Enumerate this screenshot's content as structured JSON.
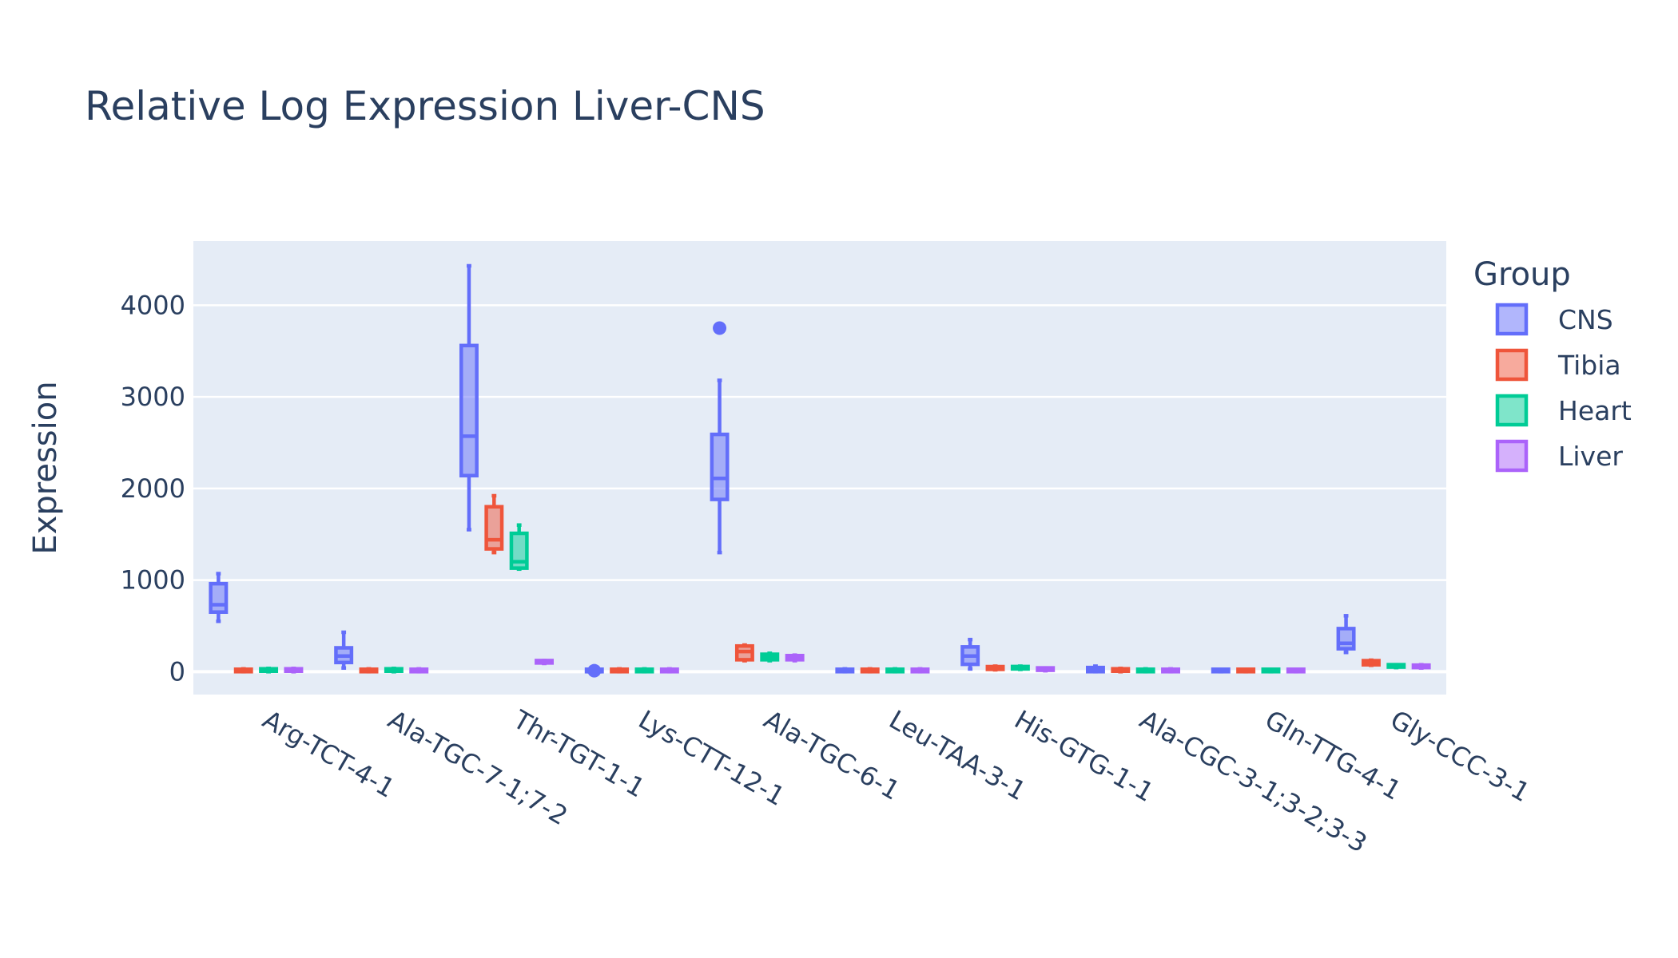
{
  "chart_data": {
    "type": "box",
    "title": "Relative Log Expression Liver-CNS",
    "xlabel": "",
    "ylabel": "Expression",
    "ylim": [
      -250,
      4700
    ],
    "yticks": [
      0,
      1000,
      2000,
      3000,
      4000
    ],
    "grid": true,
    "legend": {
      "title": "Group",
      "placement": "right"
    },
    "categories": [
      "Arg-TCT-4-1",
      "Ala-TGC-7-1;7-2",
      "Thr-TGT-1-1",
      "Lys-CTT-12-1",
      "Ala-TGC-6-1",
      "Leu-TAA-3-1",
      "His-GTG-1-1",
      "Ala-CGC-3-1;3-2;3-3",
      "Gln-TTG-4-1",
      "Gly-CCC-3-1"
    ],
    "series": [
      {
        "name": "CNS",
        "color": "#636efa",
        "boxes": [
          {
            "min": 550,
            "q1": 650,
            "median": 730,
            "q3": 960,
            "max": 1070
          },
          {
            "min": 40,
            "q1": 100,
            "median": 170,
            "q3": 260,
            "max": 430
          },
          {
            "min": 1550,
            "q1": 2140,
            "median": 2570,
            "q3": 3560,
            "max": 4430
          },
          {
            "min": 0,
            "q1": 0,
            "median": 0,
            "q3": 0,
            "max": 0,
            "outliers": [
              10
            ]
          },
          {
            "min": 1300,
            "q1": 1880,
            "median": 2110,
            "q3": 2590,
            "max": 3180,
            "outliers": [
              3750
            ]
          },
          {
            "min": 0,
            "q1": 0,
            "median": 10,
            "q3": 25,
            "max": 30
          },
          {
            "min": 30,
            "q1": 80,
            "median": 170,
            "q3": 270,
            "max": 350
          },
          {
            "min": 0,
            "q1": 0,
            "median": 20,
            "q3": 45,
            "max": 60
          },
          {
            "min": 0,
            "q1": 0,
            "median": 5,
            "q3": 15,
            "max": 20
          },
          {
            "min": 210,
            "q1": 250,
            "median": 310,
            "q3": 470,
            "max": 610
          }
        ]
      },
      {
        "name": "Tibia",
        "color": "#ef553b",
        "boxes": [
          {
            "min": 0,
            "q1": 0,
            "median": 10,
            "q3": 25,
            "max": 30
          },
          {
            "min": 0,
            "q1": 0,
            "median": 10,
            "q3": 25,
            "max": 30
          },
          {
            "min": 1300,
            "q1": 1340,
            "median": 1440,
            "q3": 1800,
            "max": 1920
          },
          {
            "min": 0,
            "q1": 0,
            "median": 10,
            "q3": 25,
            "max": 30
          },
          {
            "min": 120,
            "q1": 130,
            "median": 220,
            "q3": 280,
            "max": 290
          },
          {
            "min": 0,
            "q1": 0,
            "median": 10,
            "q3": 25,
            "max": 30
          },
          {
            "min": 20,
            "q1": 25,
            "median": 40,
            "q3": 55,
            "max": 60
          },
          {
            "min": 0,
            "q1": 5,
            "median": 15,
            "q3": 30,
            "max": 35
          },
          {
            "min": 0,
            "q1": 0,
            "median": 5,
            "q3": 15,
            "max": 20
          },
          {
            "min": 70,
            "q1": 75,
            "median": 100,
            "q3": 120,
            "max": 125
          }
        ]
      },
      {
        "name": "Heart",
        "color": "#00cc96",
        "boxes": [
          {
            "min": 0,
            "q1": 5,
            "median": 15,
            "q3": 30,
            "max": 35
          },
          {
            "min": 0,
            "q1": 5,
            "median": 15,
            "q3": 30,
            "max": 35
          },
          {
            "min": 1120,
            "q1": 1130,
            "median": 1200,
            "q3": 1510,
            "max": 1600
          },
          {
            "min": 0,
            "q1": 0,
            "median": 10,
            "q3": 25,
            "max": 30
          },
          {
            "min": 120,
            "q1": 130,
            "median": 160,
            "q3": 190,
            "max": 200
          },
          {
            "min": 0,
            "q1": 0,
            "median": 10,
            "q3": 25,
            "max": 30
          },
          {
            "min": 25,
            "q1": 30,
            "median": 40,
            "q3": 55,
            "max": 60
          },
          {
            "min": 0,
            "q1": 0,
            "median": 10,
            "q3": 25,
            "max": 30
          },
          {
            "min": 0,
            "q1": 0,
            "median": 5,
            "q3": 15,
            "max": 20
          },
          {
            "min": 45,
            "q1": 50,
            "median": 60,
            "q3": 70,
            "max": 75
          }
        ]
      },
      {
        "name": "Liver",
        "color": "#ab63fa",
        "boxes": [
          {
            "min": 0,
            "q1": 5,
            "median": 15,
            "q3": 30,
            "max": 35
          },
          {
            "min": 0,
            "q1": 0,
            "median": 10,
            "q3": 25,
            "max": 30
          },
          {
            "min": 90,
            "q1": 95,
            "median": 105,
            "q3": 115,
            "max": 120
          },
          {
            "min": 0,
            "q1": 0,
            "median": 10,
            "q3": 25,
            "max": 30
          },
          {
            "min": 120,
            "q1": 130,
            "median": 150,
            "q3": 175,
            "max": 180
          },
          {
            "min": 0,
            "q1": 0,
            "median": 10,
            "q3": 25,
            "max": 30
          },
          {
            "min": 10,
            "q1": 15,
            "median": 25,
            "q3": 35,
            "max": 40
          },
          {
            "min": 0,
            "q1": 0,
            "median": 10,
            "q3": 25,
            "max": 30
          },
          {
            "min": 0,
            "q1": 0,
            "median": 5,
            "q3": 15,
            "max": 20
          },
          {
            "min": 40,
            "q1": 45,
            "median": 60,
            "q3": 70,
            "max": 75
          }
        ]
      }
    ]
  }
}
